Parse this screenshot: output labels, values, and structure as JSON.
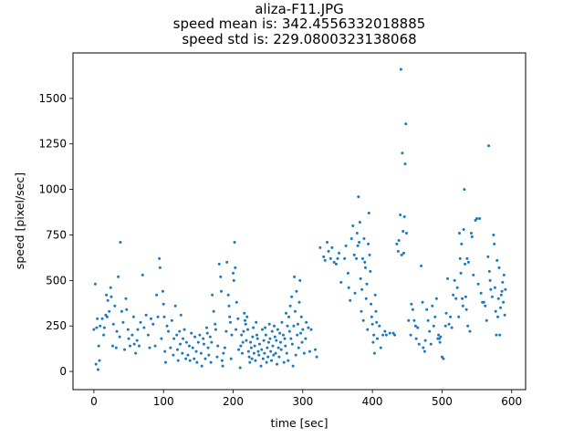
{
  "chart_data": {
    "type": "scatter",
    "title_lines": [
      "aliza-F11.JPG",
      "speed mean is: 342.4556332018885",
      "speed std is: 229.0800323138068"
    ],
    "xlabel": "time [sec]",
    "ylabel": "speed [pixel/sec]",
    "xlim": [
      -30,
      620
    ],
    "ylim": [
      -100,
      1750
    ],
    "xticks": [
      0,
      100,
      200,
      300,
      400,
      500,
      600
    ],
    "yticks": [
      0,
      250,
      500,
      750,
      1000,
      1250,
      1500
    ],
    "grid": false,
    "color": "#1f77b4",
    "points": [
      [
        0,
        230
      ],
      [
        2,
        480
      ],
      [
        3,
        40
      ],
      [
        4,
        240
      ],
      [
        5,
        290
      ],
      [
        6,
        10
      ],
      [
        7,
        140
      ],
      [
        8,
        60
      ],
      [
        9,
        250
      ],
      [
        12,
        290
      ],
      [
        14,
        200
      ],
      [
        15,
        240
      ],
      [
        17,
        310
      ],
      [
        18,
        420
      ],
      [
        19,
        300
      ],
      [
        20,
        390
      ],
      [
        22,
        330
      ],
      [
        24,
        460
      ],
      [
        25,
        410
      ],
      [
        27,
        140
      ],
      [
        28,
        260
      ],
      [
        30,
        360
      ],
      [
        32,
        130
      ],
      [
        33,
        220
      ],
      [
        35,
        520
      ],
      [
        37,
        190
      ],
      [
        38,
        710
      ],
      [
        40,
        330
      ],
      [
        42,
        270
      ],
      [
        44,
        120
      ],
      [
        46,
        400
      ],
      [
        47,
        340
      ],
      [
        49,
        230
      ],
      [
        50,
        180
      ],
      [
        52,
        140
      ],
      [
        55,
        200
      ],
      [
        57,
        300
      ],
      [
        58,
        150
      ],
      [
        60,
        100
      ],
      [
        62,
        170
      ],
      [
        63,
        230
      ],
      [
        65,
        140
      ],
      [
        67,
        270
      ],
      [
        70,
        530
      ],
      [
        72,
        240
      ],
      [
        75,
        310
      ],
      [
        78,
        200
      ],
      [
        80,
        130
      ],
      [
        82,
        290
      ],
      [
        85,
        260
      ],
      [
        88,
        140
      ],
      [
        90,
        420
      ],
      [
        92,
        300
      ],
      [
        94,
        620
      ],
      [
        95,
        570
      ],
      [
        97,
        180
      ],
      [
        99,
        440
      ],
      [
        100,
        370
      ],
      [
        101,
        300
      ],
      [
        102,
        110
      ],
      [
        103,
        50
      ],
      [
        105,
        250
      ],
      [
        107,
        220
      ],
      [
        110,
        130
      ],
      [
        112,
        280
      ],
      [
        114,
        90
      ],
      [
        115,
        180
      ],
      [
        117,
        360
      ],
      [
        119,
        200
      ],
      [
        120,
        120
      ],
      [
        121,
        60
      ],
      [
        123,
        220
      ],
      [
        124,
        150
      ],
      [
        125,
        310
      ],
      [
        127,
        100
      ],
      [
        128,
        180
      ],
      [
        130,
        230
      ],
      [
        132,
        70
      ],
      [
        133,
        160
      ],
      [
        135,
        90
      ],
      [
        137,
        140
      ],
      [
        138,
        60
      ],
      [
        140,
        210
      ],
      [
        142,
        130
      ],
      [
        144,
        70
      ],
      [
        145,
        190
      ],
      [
        147,
        110
      ],
      [
        148,
        50
      ],
      [
        150,
        160
      ],
      [
        152,
        200
      ],
      [
        154,
        100
      ],
      [
        155,
        30
      ],
      [
        157,
        180
      ],
      [
        158,
        150
      ],
      [
        160,
        70
      ],
      [
        162,
        240
      ],
      [
        163,
        210
      ],
      [
        164,
        130
      ],
      [
        165,
        90
      ],
      [
        167,
        190
      ],
      [
        168,
        50
      ],
      [
        169,
        160
      ],
      [
        170,
        420
      ],
      [
        172,
        330
      ],
      [
        174,
        260
      ],
      [
        175,
        230
      ],
      [
        177,
        80
      ],
      [
        178,
        140
      ],
      [
        180,
        590
      ],
      [
        182,
        520
      ],
      [
        183,
        440
      ],
      [
        184,
        60
      ],
      [
        185,
        30
      ],
      [
        186,
        100
      ],
      [
        188,
        130
      ],
      [
        190,
        220
      ],
      [
        191,
        600
      ],
      [
        193,
        420
      ],
      [
        194,
        360
      ],
      [
        195,
        300
      ],
      [
        196,
        270
      ],
      [
        197,
        70
      ],
      [
        198,
        200
      ],
      [
        200,
        540
      ],
      [
        201,
        500
      ],
      [
        202,
        710
      ],
      [
        203,
        570
      ],
      [
        204,
        230
      ],
      [
        205,
        380
      ],
      [
        207,
        290
      ],
      [
        208,
        120
      ],
      [
        210,
        20
      ],
      [
        211,
        140
      ],
      [
        212,
        200
      ],
      [
        213,
        100
      ],
      [
        214,
        160
      ],
      [
        215,
        220
      ],
      [
        216,
        320
      ],
      [
        217,
        280
      ],
      [
        218,
        260
      ],
      [
        219,
        170
      ],
      [
        220,
        300
      ],
      [
        221,
        230
      ],
      [
        222,
        110
      ],
      [
        223,
        80
      ],
      [
        224,
        50
      ],
      [
        225,
        160
      ],
      [
        226,
        130
      ],
      [
        227,
        70
      ],
      [
        228,
        190
      ],
      [
        229,
        240
      ],
      [
        230,
        100
      ],
      [
        231,
        140
      ],
      [
        232,
        60
      ],
      [
        233,
        270
      ],
      [
        234,
        200
      ],
      [
        235,
        180
      ],
      [
        236,
        110
      ],
      [
        237,
        90
      ],
      [
        238,
        150
      ],
      [
        240,
        30
      ],
      [
        241,
        120
      ],
      [
        242,
        230
      ],
      [
        243,
        70
      ],
      [
        244,
        170
      ],
      [
        245,
        100
      ],
      [
        246,
        240
      ],
      [
        247,
        200
      ],
      [
        248,
        50
      ],
      [
        249,
        130
      ],
      [
        250,
        80
      ],
      [
        251,
        160
      ],
      [
        252,
        260
      ],
      [
        253,
        180
      ],
      [
        254,
        110
      ],
      [
        255,
        60
      ],
      [
        256,
        220
      ],
      [
        257,
        140
      ],
      [
        258,
        90
      ],
      [
        259,
        250
      ],
      [
        260,
        190
      ],
      [
        261,
        100
      ],
      [
        262,
        170
      ],
      [
        263,
        40
      ],
      [
        264,
        230
      ],
      [
        265,
        130
      ],
      [
        266,
        80
      ],
      [
        267,
        210
      ],
      [
        268,
        160
      ],
      [
        269,
        120
      ],
      [
        270,
        270
      ],
      [
        272,
        200
      ],
      [
        273,
        50
      ],
      [
        274,
        180
      ],
      [
        275,
        140
      ],
      [
        276,
        320
      ],
      [
        277,
        100
      ],
      [
        278,
        250
      ],
      [
        279,
        60
      ],
      [
        280,
        300
      ],
      [
        281,
        220
      ],
      [
        282,
        360
      ],
      [
        283,
        180
      ],
      [
        284,
        410
      ],
      [
        285,
        150
      ],
      [
        286,
        30
      ],
      [
        287,
        250
      ],
      [
        288,
        520
      ],
      [
        289,
        330
      ],
      [
        290,
        90
      ],
      [
        291,
        440
      ],
      [
        292,
        200
      ],
      [
        293,
        260
      ],
      [
        294,
        130
      ],
      [
        295,
        380
      ],
      [
        296,
        500
      ],
      [
        297,
        210
      ],
      [
        298,
        300
      ],
      [
        299,
        160
      ],
      [
        300,
        230
      ],
      [
        302,
        100
      ],
      [
        304,
        180
      ],
      [
        305,
        270
      ],
      [
        308,
        240
      ],
      [
        310,
        110
      ],
      [
        312,
        230
      ],
      [
        318,
        120
      ],
      [
        320,
        80
      ],
      [
        325,
        680
      ],
      [
        330,
        630
      ],
      [
        332,
        610
      ],
      [
        335,
        710
      ],
      [
        337,
        660
      ],
      [
        340,
        620
      ],
      [
        342,
        680
      ],
      [
        345,
        600
      ],
      [
        348,
        590
      ],
      [
        350,
        620
      ],
      [
        352,
        650
      ],
      [
        355,
        490
      ],
      [
        360,
        620
      ],
      [
        362,
        690
      ],
      [
        365,
        540
      ],
      [
        366,
        460
      ],
      [
        368,
        390
      ],
      [
        370,
        730
      ],
      [
        372,
        800
      ],
      [
        374,
        640
      ],
      [
        375,
        430
      ],
      [
        377,
        620
      ],
      [
        378,
        760
      ],
      [
        379,
        690
      ],
      [
        380,
        960
      ],
      [
        381,
        710
      ],
      [
        382,
        820
      ],
      [
        383,
        510
      ],
      [
        384,
        330
      ],
      [
        385,
        450
      ],
      [
        386,
        620
      ],
      [
        387,
        280
      ],
      [
        388,
        730
      ],
      [
        389,
        600
      ],
      [
        390,
        570
      ],
      [
        391,
        400
      ],
      [
        392,
        480
      ],
      [
        393,
        230
      ],
      [
        394,
        700
      ],
      [
        395,
        870
      ],
      [
        396,
        640
      ],
      [
        397,
        550
      ],
      [
        398,
        370
      ],
      [
        399,
        300
      ],
      [
        400,
        260
      ],
      [
        401,
        160
      ],
      [
        402,
        200
      ],
      [
        403,
        100
      ],
      [
        404,
        420
      ],
      [
        405,
        330
      ],
      [
        406,
        270
      ],
      [
        407,
        180
      ],
      [
        410,
        250
      ],
      [
        412,
        130
      ],
      [
        415,
        200
      ],
      [
        418,
        220
      ],
      [
        420,
        200
      ],
      [
        425,
        210
      ],
      [
        430,
        210
      ],
      [
        432,
        200
      ],
      [
        435,
        700
      ],
      [
        437,
        660
      ],
      [
        438,
        720
      ],
      [
        440,
        860
      ],
      [
        441,
        1660
      ],
      [
        442,
        640
      ],
      [
        443,
        1200
      ],
      [
        444,
        770
      ],
      [
        445,
        650
      ],
      [
        446,
        850
      ],
      [
        447,
        1140
      ],
      [
        448,
        1360
      ],
      [
        449,
        760
      ],
      [
        452,
        280
      ],
      [
        455,
        200
      ],
      [
        456,
        370
      ],
      [
        458,
        340
      ],
      [
        460,
        280
      ],
      [
        462,
        250
      ],
      [
        463,
        180
      ],
      [
        465,
        240
      ],
      [
        467,
        150
      ],
      [
        470,
        580
      ],
      [
        472,
        380
      ],
      [
        473,
        130
      ],
      [
        475,
        110
      ],
      [
        476,
        170
      ],
      [
        478,
        340
      ],
      [
        480,
        280
      ],
      [
        482,
        220
      ],
      [
        484,
        150
      ],
      [
        486,
        360
      ],
      [
        488,
        250
      ],
      [
        490,
        300
      ],
      [
        492,
        400
      ],
      [
        494,
        180
      ],
      [
        495,
        200
      ],
      [
        496,
        180
      ],
      [
        497,
        160
      ],
      [
        498,
        190
      ],
      [
        500,
        80
      ],
      [
        502,
        70
      ],
      [
        505,
        250
      ],
      [
        506,
        320
      ],
      [
        508,
        510
      ],
      [
        510,
        260
      ],
      [
        512,
        300
      ],
      [
        514,
        240
      ],
      [
        516,
        420
      ],
      [
        518,
        500
      ],
      [
        520,
        400
      ],
      [
        522,
        460
      ],
      [
        524,
        300
      ],
      [
        525,
        760
      ],
      [
        526,
        620
      ],
      [
        527,
        540
      ],
      [
        528,
        700
      ],
      [
        529,
        400
      ],
      [
        530,
        360
      ],
      [
        531,
        780
      ],
      [
        532,
        1000
      ],
      [
        533,
        590
      ],
      [
        534,
        410
      ],
      [
        535,
        340
      ],
      [
        536,
        620
      ],
      [
        537,
        250
      ],
      [
        538,
        600
      ],
      [
        540,
        220
      ],
      [
        542,
        760
      ],
      [
        543,
        740
      ],
      [
        545,
        530
      ],
      [
        548,
        830
      ],
      [
        550,
        840
      ],
      [
        552,
        480
      ],
      [
        554,
        840
      ],
      [
        556,
        430
      ],
      [
        558,
        380
      ],
      [
        560,
        380
      ],
      [
        562,
        360
      ],
      [
        564,
        280
      ],
      [
        566,
        630
      ],
      [
        567,
        1240
      ],
      [
        568,
        550
      ],
      [
        569,
        500
      ],
      [
        570,
        450
      ],
      [
        572,
        410
      ],
      [
        574,
        750
      ],
      [
        575,
        700
      ],
      [
        576,
        460
      ],
      [
        577,
        330
      ],
      [
        578,
        200
      ],
      [
        579,
        610
      ],
      [
        580,
        300
      ],
      [
        581,
        400
      ],
      [
        582,
        570
      ],
      [
        583,
        200
      ],
      [
        584,
        350
      ],
      [
        585,
        420
      ],
      [
        586,
        440
      ],
      [
        587,
        490
      ],
      [
        588,
        380
      ],
      [
        589,
        530
      ],
      [
        590,
        310
      ],
      [
        591,
        450
      ]
    ]
  }
}
